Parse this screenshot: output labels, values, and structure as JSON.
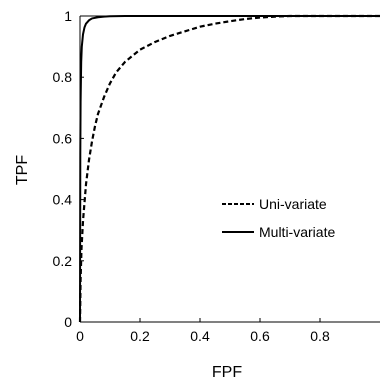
{
  "chart_data": {
    "type": "line",
    "xlabel": "FPF",
    "ylabel": "TPF",
    "xlim": [
      0,
      1
    ],
    "ylim": [
      0,
      1
    ],
    "x_ticks": [
      "0",
      "0.2",
      "0.4",
      "0.6",
      "0.8"
    ],
    "y_ticks": [
      "0",
      "0.2",
      "0.4",
      "0.6",
      "0.8",
      "1"
    ],
    "grid": false,
    "legend_position": "center-right",
    "series": [
      {
        "name": "Uni-variate",
        "line_style": "dashed",
        "color": "#000000",
        "points": [
          [
            0,
            0
          ],
          [
            0.002,
            0.14
          ],
          [
            0.005,
            0.24
          ],
          [
            0.01,
            0.33
          ],
          [
            0.02,
            0.45
          ],
          [
            0.03,
            0.53
          ],
          [
            0.04,
            0.59
          ],
          [
            0.05,
            0.64
          ],
          [
            0.06,
            0.68
          ],
          [
            0.08,
            0.735
          ],
          [
            0.1,
            0.78
          ],
          [
            0.12,
            0.815
          ],
          [
            0.15,
            0.85
          ],
          [
            0.2,
            0.89
          ],
          [
            0.25,
            0.915
          ],
          [
            0.3,
            0.935
          ],
          [
            0.35,
            0.95
          ],
          [
            0.4,
            0.965
          ],
          [
            0.45,
            0.975
          ],
          [
            0.5,
            0.983
          ],
          [
            0.55,
            0.99
          ],
          [
            0.6,
            0.995
          ],
          [
            0.65,
            0.998
          ],
          [
            0.7,
            1.0
          ],
          [
            0.8,
            1.0
          ],
          [
            0.9,
            1.0
          ],
          [
            1.0,
            1.0
          ]
        ]
      },
      {
        "name": "Multi-variate",
        "line_style": "solid",
        "color": "#000000",
        "points": [
          [
            0,
            0
          ],
          [
            0.001,
            0.55
          ],
          [
            0.002,
            0.72
          ],
          [
            0.004,
            0.85
          ],
          [
            0.006,
            0.9
          ],
          [
            0.01,
            0.94
          ],
          [
            0.015,
            0.963
          ],
          [
            0.02,
            0.975
          ],
          [
            0.03,
            0.986
          ],
          [
            0.04,
            0.992
          ],
          [
            0.06,
            0.996
          ],
          [
            0.08,
            0.998
          ],
          [
            0.1,
            0.999
          ],
          [
            0.15,
            1.0
          ],
          [
            0.3,
            1.0
          ],
          [
            0.5,
            1.0
          ],
          [
            0.7,
            1.0
          ],
          [
            1.0,
            1.0
          ]
        ]
      }
    ]
  }
}
